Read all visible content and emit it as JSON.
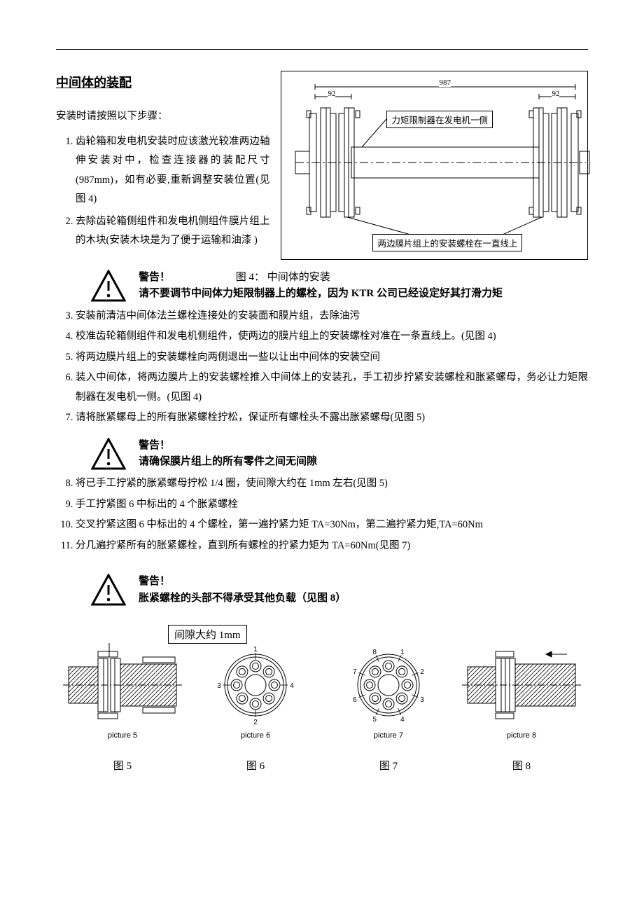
{
  "section_title": "中间体的装配",
  "intro": "安装时请按照以下步骤：",
  "steps_top": [
    "齿轮箱和发电机安装时应该激光较准两边轴伸安装对中，检查连接器的装配尺寸(987mm)，如有必要,重新调整安装位置(见图 4)",
    "去除齿轮箱侧组件和发电机侧组件膜片组上的木块(安装木块是为了便于运输和油漆 )"
  ],
  "fig4": {
    "dim_overall": "987",
    "dim_side": "92",
    "callout_top": "力矩限制器在发电机一侧",
    "callout_bottom": "两边膜片组上的安装螺栓在一直线上",
    "caption": "图 4：  中间体的安装"
  },
  "warn1_title": "警告！",
  "warn1_body": "请不要调节中间体力矩限制器上的螺栓，因为 KTR 公司已经设定好其打滑力矩",
  "steps_mid": [
    "安装前清洁中间体法兰螺栓连接处的安装面和膜片组，去除油污",
    "校准齿轮箱侧组件和发电机侧组件，使两边的膜片组上的安装螺栓对准在一条直线上。(见图 4)",
    "将两边膜片组上的安装螺栓向两侧退出一些以让出中间体的安装空间",
    "装入中间体，将两边膜片上的安装螺栓推入中间体上的安装孔，手工初步拧紧安装螺栓和胀紧螺母，务必让力矩限制器在发电机一侧。(见图 4)",
    "请将胀紧螺母上的所有胀紧螺栓拧松，保证所有螺栓头不露出胀紧螺母(见图 5)"
  ],
  "warn2_title": "警告！",
  "warn2_body": "请确保膜片组上的所有零件之间无间隙",
  "steps_bot": [
    "将已手工拧紧的胀紧螺母拧松 1/4 圈，使间隙大约在 1mm 左右(见图 5)",
    "手工拧紧图 6 中标出的 4 个胀紧螺栓",
    "交叉拧紧这图 6 中标出的 4 个螺栓，第一遍拧紧力矩 TA=30Nm，第二遍拧紧力矩,TA=60Nm",
    "分几遍拧紧所有的胀紧螺栓，直到所有螺栓的拧紧力矩为 TA=60Nm(见图 7)"
  ],
  "warn3_title": "警告！",
  "warn3_body": "胀紧螺栓的头部不得承受其他负载（见图 8）",
  "gap_label": "间隙大约 1mm",
  "pic_captions": {
    "p5": "picture 5",
    "p6": "picture 6",
    "p7": "picture 7",
    "p8": "picture 8"
  },
  "cn_captions": {
    "f5": "图 5",
    "f6": "图 6",
    "f7": "图 7",
    "f8": "图 8"
  },
  "colors": {
    "stroke": "#000000",
    "hatch": "#000000",
    "bg": "#ffffff"
  },
  "fig6_numbers": [
    "1",
    "2",
    "3",
    "4"
  ],
  "fig7_numbers": [
    "1",
    "2",
    "3",
    "4",
    "5",
    "6",
    "7",
    "8"
  ]
}
